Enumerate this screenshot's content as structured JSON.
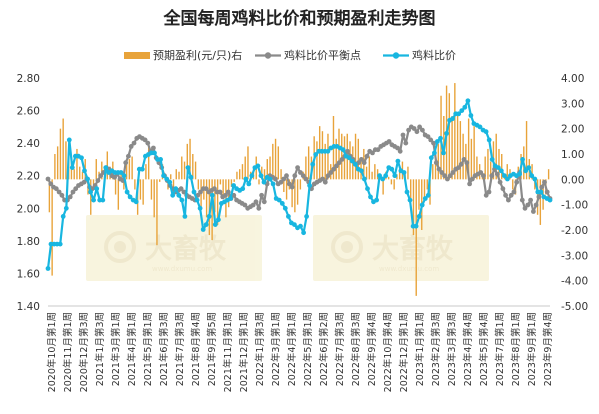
{
  "chart_data": {
    "type": "line",
    "title": "全国每周鸡料比价和预期盈利走势图",
    "legend": [
      {
        "name": "预期盈利(元/只)右",
        "color": "#e8a33a",
        "type": "bar"
      },
      {
        "name": "鸡料比价平衡点",
        "color": "#8a8a8a",
        "type": "line"
      },
      {
        "name": "鸡料比价",
        "color": "#18b6e0",
        "type": "line"
      }
    ],
    "watermark": {
      "brand": "大畜牧",
      "url": "www.dxumu.com"
    },
    "y_left": {
      "min": 1.4,
      "max": 2.8,
      "ticks": [
        "1.40",
        "1.60",
        "1.80",
        "2.00",
        "2.20",
        "2.40",
        "2.60",
        "2.80"
      ]
    },
    "y_right": {
      "min": -5,
      "max": 4,
      "ticks": [
        "4.00",
        "3.00",
        "2.00",
        "1.00",
        "0.00",
        "-1.00",
        "-2.00",
        "-3.00",
        "-4.00",
        "-5.00"
      ]
    },
    "x_labels": [
      "2020年10月第1周",
      "2020年11月第1周",
      "2020年12月第3周",
      "2021年1月第3周",
      "2021年3月第1周",
      "2021年4月第1周",
      "2021年5月第1周",
      "2021年6月第3周",
      "2021年7月第3周",
      "2021年8月第4周",
      "2021年9月第5周",
      "2021年11月第1周",
      "2021年12月第1周",
      "2022年1月第3周",
      "2022年3月第1周",
      "2022年4月第1周",
      "2022年5月第1周",
      "2022年6月第2周",
      "2022年7月第3周",
      "2022年8月第3周",
      "2022年9月第4周",
      "2022年10月第4周",
      "2022年12月第1周",
      "2023年1月第1周",
      "2023年2月第3周",
      "2023年3月第3周",
      "2023年4月第4周",
      "2023年5月第4周",
      "2023年7月第1周",
      "2023年8月第1周",
      "2023年9月第1周",
      "2023年9月第4周"
    ],
    "series": {
      "ratio": [
        1.63,
        1.78,
        1.78,
        1.78,
        1.78,
        1.95,
        2.0,
        2.42,
        2.25,
        2.32,
        2.32,
        2.31,
        2.23,
        2.18,
        2.1,
        2.05,
        2.12,
        2.05,
        2.05,
        2.25,
        2.22,
        2.23,
        2.22,
        2.22,
        2.22,
        2.2,
        2.1,
        2.07,
        2.05,
        2.04,
        2.24,
        2.24,
        2.32,
        2.33,
        2.34,
        2.34,
        2.3,
        2.3,
        2.2,
        2.18,
        2.16,
        2.08,
        2.12,
        2.08,
        2.05,
        1.95,
        2.25,
        2.19,
        2.1,
        2.05,
        2.0,
        1.87,
        1.9,
        1.95,
        2.08,
        1.9,
        1.93,
        2.03,
        2.04,
        2.05,
        2.06,
        2.14,
        2.12,
        2.11,
        2.12,
        2.18,
        2.15,
        2.2,
        2.25,
        2.26,
        2.2,
        2.16,
        2.19,
        2.18,
        2.15,
        2.06,
        2.05,
        2.03,
        2.0,
        1.95,
        1.91,
        1.9,
        1.88,
        1.89,
        1.85,
        1.95,
        2.14,
        2.27,
        2.33,
        2.35,
        2.35,
        2.35,
        2.35,
        2.37,
        2.38,
        2.38,
        2.37,
        2.36,
        2.32,
        2.31,
        2.29,
        2.27,
        2.24,
        2.23,
        2.18,
        2.12,
        2.07,
        2.04,
        2.05,
        2.2,
        2.18,
        2.2,
        2.25,
        2.24,
        2.2,
        2.29,
        2.23,
        2.22,
        2.1,
        2.05,
        1.89,
        1.89,
        1.95,
        2.02,
        2.06,
        2.08,
        2.31,
        2.34,
        2.41,
        2.43,
        2.34,
        2.46,
        2.54,
        2.55,
        2.58,
        2.58,
        2.6,
        2.62,
        2.66,
        2.57,
        2.52,
        2.51,
        2.5,
        2.48,
        2.47,
        2.42,
        2.3,
        2.26,
        2.25,
        2.23,
        2.2,
        2.18,
        2.2,
        2.21,
        2.2,
        2.21,
        2.3,
        2.23,
        2.25,
        2.2,
        2.18,
        2.1,
        2.1,
        2.07,
        2.06,
        2.05
      ],
      "balance": [
        2.18,
        2.15,
        2.13,
        2.12,
        2.1,
        2.08,
        2.05,
        2.05,
        2.07,
        2.1,
        2.12,
        2.14,
        2.15,
        2.16,
        2.18,
        2.13,
        2.12,
        2.14,
        2.17,
        2.2,
        2.22,
        2.25,
        2.24,
        2.2,
        2.19,
        2.21,
        2.18,
        2.17,
        2.28,
        2.32,
        2.38,
        2.4,
        2.43,
        2.44,
        2.43,
        2.42,
        2.4,
        2.35,
        2.37,
        2.31,
        2.28,
        2.25,
        2.2,
        2.17,
        2.14,
        2.12,
        2.1,
        2.11,
        2.12,
        2.1,
        2.08,
        2.07,
        2.06,
        2.05,
        2.08,
        2.1,
        2.12,
        2.12,
        2.1,
        2.11,
        2.12,
        2.1,
        2.1,
        2.07,
        2.08,
        2.1,
        2.06,
        2.08,
        2.05,
        2.04,
        2.03,
        2.02,
        2.0,
        2.01,
        2.02,
        2.04,
        2.0,
        2.08,
        2.04,
        2.15,
        2.2,
        2.19,
        2.18,
        2.15,
        2.16,
        2.18,
        2.2,
        2.15,
        2.13,
        2.2,
        2.25,
        2.22,
        2.2,
        2.18,
        2.16,
        2.12,
        2.15,
        2.16,
        2.17,
        2.18,
        2.16,
        2.2,
        2.22,
        2.24,
        2.26,
        2.28,
        2.3,
        2.32,
        2.35,
        2.32,
        2.3,
        2.27,
        2.28,
        2.3,
        2.28,
        2.32,
        2.35,
        2.34,
        2.36,
        2.36,
        2.38,
        2.39,
        2.4,
        2.41,
        2.39,
        2.38,
        2.37,
        2.35,
        2.45,
        2.4,
        2.48,
        2.5,
        2.49,
        2.47,
        2.5,
        2.48,
        2.45,
        2.44,
        2.42,
        2.4,
        2.28,
        2.24,
        2.22,
        2.2,
        2.18,
        2.2,
        2.22,
        2.24,
        2.25,
        2.27,
        2.3,
        2.28,
        2.15,
        2.18,
        2.2,
        2.21,
        2.22,
        2.2,
        2.08,
        2.1,
        2.2,
        2.24,
        2.21,
        2.16,
        2.12,
        2.08,
        2.05,
        2.08,
        2.1,
        2.16,
        2.22,
        2.05,
        2.0,
        2.02,
        2.05,
        1.98,
        2.02,
        2.07,
        2.13,
        2.16,
        2.1,
        2.06
      ],
      "profit": [
        -1.3,
        -3.8,
        1.0,
        1.3,
        2.0,
        2.4,
        1.5,
        1.0,
        0.9,
        0.4,
        1.2,
        0.5,
        0.3,
        0.8,
        -0.6,
        -1.4,
        -0.2,
        0.8,
        0.3,
        0.7,
        0.4,
        1.1,
        0.5,
        0.7,
        -0.6,
        -1.2,
        0.3,
        -0.4,
        0.6,
        0.8,
        0.9,
        -0.4,
        -1.4,
        -0.8,
        -1.0,
        0.6,
        1.3,
        -0.8,
        -1.5,
        -2.6,
        -0.1,
        0.6,
        0.2,
        -0.4,
        0.2,
        -0.6,
        0.4,
        0.3,
        0.9,
        0.7,
        1.4,
        1.6,
        1.0,
        0.7,
        -0.4,
        -1.2,
        -0.8,
        -1.5,
        -2.2,
        -2.4,
        -1.3,
        -1.8,
        -0.2,
        -0.6,
        -1.5,
        -1.1,
        -0.3,
        -0.1,
        0.3,
        0.4,
        0.6,
        0.9,
        1.3,
        0.3,
        0.4,
        0.9,
        -0.2,
        0.5,
        0.4,
        0.8,
        0.9,
        1.4,
        1.6,
        1.3,
        0.4,
        -0.5,
        -0.8,
        -0.4,
        -1.1,
        -1.3,
        -1.0,
        -0.4,
        0.3,
        0.9,
        1.3,
        0.9,
        1.7,
        1.5,
        2.1,
        1.9,
        1.4,
        1.8,
        0.6,
        2.5,
        1.6,
        2.0,
        1.8,
        1.7,
        1.8,
        1.5,
        1.3,
        1.8,
        1.6,
        0.7,
        1.2,
        0.5,
        0.9,
        0.3,
        0.6,
        0.4,
        0.2,
        -0.6,
        0.3,
        0.1,
        -0.2,
        -0.4,
        0.2,
        0.4,
        0.7,
        0.2,
        0.5,
        -0.8,
        -2.2,
        -4.6,
        -1.2,
        -2.0,
        -0.8,
        -0.4,
        -1.0,
        0.6,
        1.2,
        1.4,
        3.3,
        2.5,
        3.7,
        3.4,
        2.5,
        3.8,
        2.6,
        2.3,
        1.8,
        1.4,
        2.4,
        1.6,
        2.1,
        0.9,
        0.6,
        0.2,
        0.9,
        1.2,
        0.7,
        1.5,
        1.8,
        1.2,
        1.0,
        0.2,
        0.6,
        0.4,
        -0.4,
        -0.6,
        0.5,
        1.0,
        1.3,
        2.3,
        0.8,
        0.6,
        -0.4,
        -1.4,
        -1.8,
        -1.2,
        -0.6,
        0.4
      ]
    }
  }
}
